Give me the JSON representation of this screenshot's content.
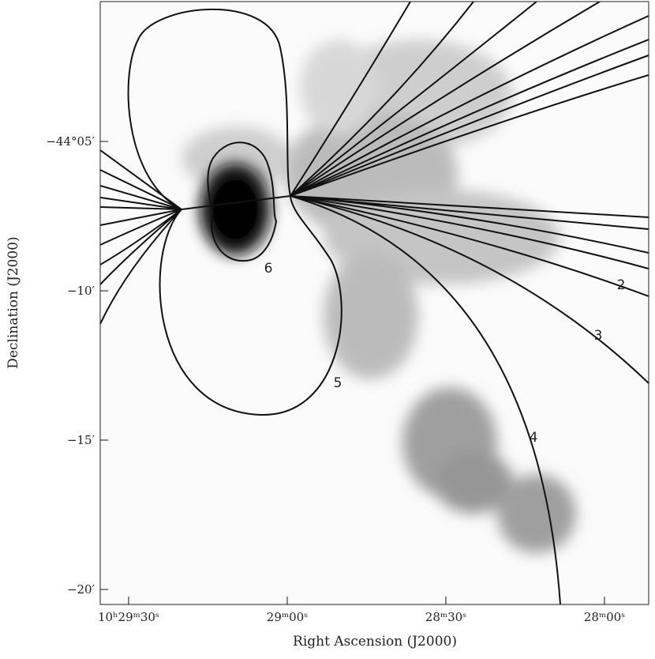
{
  "axes": {
    "x": {
      "label": "Right Ascension (J2000)",
      "ticks": [
        "10ʰ29ᵐ30ˢ",
        "29ᵐ00ˢ",
        "28ᵐ30ˢ",
        "28ᵐ00ˢ"
      ]
    },
    "y": {
      "label": "Declination (J2000)",
      "ticks": [
        "−44°05′",
        "−10′",
        "−15′",
        "−20′"
      ]
    }
  },
  "contour_labels": [
    "6",
    "5",
    "4",
    "3",
    "2"
  ]
}
